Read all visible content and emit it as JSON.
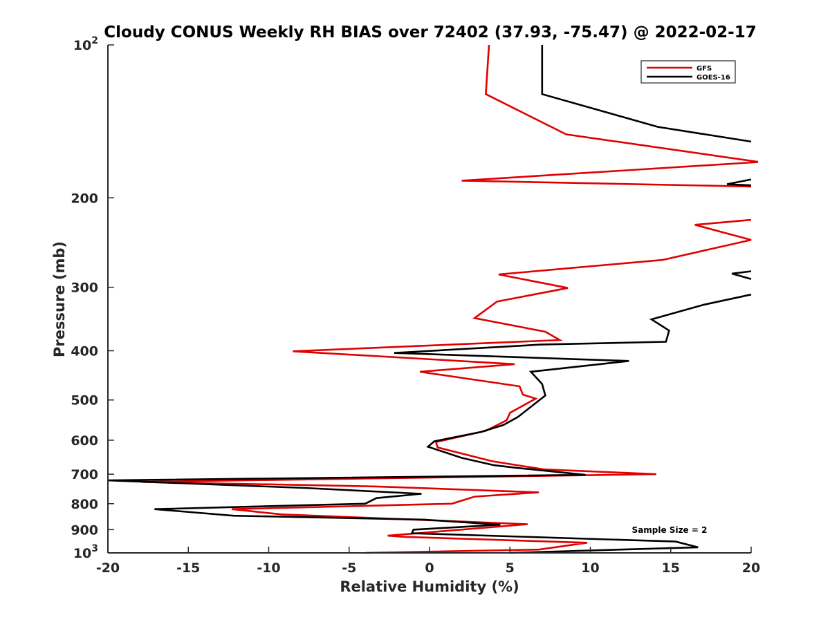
{
  "chart_data": {
    "type": "line",
    "title": "Cloudy CONUS Weekly RH BIAS over 72402 (37.93, -75.47) @ 2022-02-17",
    "xlabel": "Relative Humidity (%)",
    "ylabel": "Pressure (mb)",
    "xlim": [
      -20,
      20
    ],
    "ylim": [
      100,
      1000
    ],
    "yscale": "log",
    "y_reversed": true,
    "xticks": [
      -20,
      -15,
      -10,
      -5,
      0,
      5,
      10,
      15,
      20
    ],
    "xtick_labels": [
      "-20",
      "-15",
      "-10",
      "-5",
      "0",
      "5",
      "10",
      "15",
      "20"
    ],
    "yticks": [
      100,
      200,
      300,
      400,
      500,
      600,
      700,
      800,
      900,
      1000
    ],
    "ytick_labels": [
      {
        "base": "10",
        "exp": "2"
      },
      {
        "base": "200",
        "exp": ""
      },
      {
        "base": "300",
        "exp": ""
      },
      {
        "base": "400",
        "exp": ""
      },
      {
        "base": "500",
        "exp": ""
      },
      {
        "base": "600",
        "exp": ""
      },
      {
        "base": "700",
        "exp": ""
      },
      {
        "base": "800",
        "exp": ""
      },
      {
        "base": "900",
        "exp": ""
      },
      {
        "base": "10",
        "exp": "3"
      }
    ],
    "grid": false,
    "legend_position": "top-right",
    "annotation": "Sample Size = 2",
    "series": [
      {
        "name": "GFS",
        "color": "#e00000",
        "points": [
          [
            3.7,
            100
          ],
          [
            3.5,
            125
          ],
          [
            8.5,
            150
          ],
          [
            20.5,
            170
          ],
          [
            2.0,
            185
          ],
          [
            20.0,
            190
          ],
          null,
          [
            20.0,
            221
          ],
          [
            16.5,
            226
          ],
          [
            20.0,
            242
          ],
          [
            14.5,
            265
          ],
          [
            4.3,
            283
          ],
          [
            8.6,
            301
          ],
          [
            4.2,
            320
          ],
          [
            2.8,
            345
          ],
          [
            7.2,
            367
          ],
          [
            8.1,
            381
          ],
          [
            -8.5,
            401
          ],
          [
            5.3,
            425
          ],
          [
            -0.6,
            440
          ],
          [
            5.6,
            470
          ],
          [
            5.8,
            488
          ],
          [
            6.6,
            497
          ],
          [
            5.0,
            530
          ],
          [
            4.8,
            548
          ],
          [
            3.5,
            575
          ],
          [
            0.4,
            605
          ],
          [
            0.5,
            620
          ],
          [
            3.9,
            660
          ],
          [
            7.1,
            685
          ],
          [
            14.1,
            700
          ],
          [
            -17.9,
            725
          ],
          [
            -3.3,
            740
          ],
          [
            6.8,
            760
          ],
          [
            2.8,
            775
          ],
          [
            1.4,
            800
          ],
          [
            -12.3,
            820
          ],
          [
            -9.2,
            840
          ],
          [
            -0.9,
            860
          ],
          [
            6.1,
            878
          ],
          [
            -2.6,
            925
          ],
          [
            -1.6,
            930
          ],
          [
            9.8,
            955
          ],
          [
            6.8,
            985
          ],
          [
            -4.0,
            1000
          ]
        ]
      },
      {
        "name": "GOES-16",
        "color": "#000000",
        "points": [
          [
            7.0,
            100
          ],
          [
            7.0,
            125
          ],
          [
            14.2,
            145
          ],
          [
            20.0,
            155
          ],
          null,
          [
            20.0,
            184
          ],
          [
            18.5,
            188
          ],
          [
            20.0,
            189
          ],
          null,
          [
            20.0,
            279
          ],
          [
            18.8,
            282
          ],
          [
            20.0,
            289
          ],
          null,
          [
            20.0,
            310
          ],
          [
            17.0,
            325
          ],
          [
            13.8,
            347
          ],
          [
            14.9,
            365
          ],
          [
            14.7,
            384
          ],
          [
            6.9,
            389
          ],
          [
            -2.2,
            404
          ],
          [
            12.4,
            419
          ],
          [
            6.3,
            440
          ],
          [
            7.0,
            465
          ],
          [
            7.2,
            490
          ],
          [
            5.5,
            540
          ],
          [
            4.6,
            560
          ],
          [
            3.2,
            578
          ],
          [
            0.3,
            603
          ],
          [
            -0.1,
            618
          ],
          [
            2.0,
            650
          ],
          [
            4.0,
            672
          ],
          [
            5.4,
            680
          ],
          [
            9.7,
            702
          ],
          [
            -20.0,
            720
          ],
          [
            -7.8,
            745
          ],
          [
            -0.5,
            765
          ],
          [
            -3.3,
            780
          ],
          [
            -4.0,
            800
          ],
          [
            -17.1,
            820
          ],
          [
            -12.2,
            845
          ],
          [
            -0.3,
            860
          ],
          [
            4.4,
            880
          ],
          [
            -1.0,
            900
          ],
          [
            -1.1,
            915
          ],
          [
            15.3,
            950
          ],
          [
            16.7,
            975
          ],
          [
            5.0,
            1000
          ]
        ]
      }
    ]
  }
}
